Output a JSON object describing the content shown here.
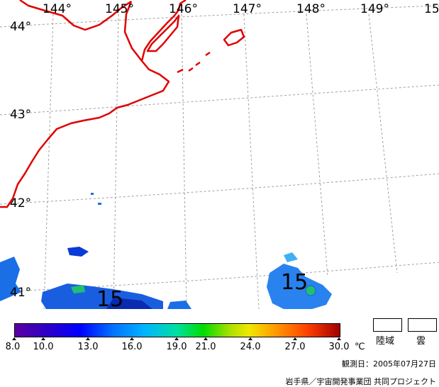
{
  "map": {
    "longitude_labels": [
      "144°",
      "145°",
      "146°",
      "147°",
      "148°",
      "149°",
      "15"
    ],
    "latitude_labels": [
      "44°",
      "43°",
      "42°",
      "41°"
    ],
    "contour_labels": [
      "15",
      "15"
    ],
    "coastline_color": "#e00000"
  },
  "legend": {
    "ticks": [
      "8.0",
      "10.0",
      "13.0",
      "16.0",
      "19.0",
      "21.0",
      "24.0",
      "27.0",
      "30.0"
    ],
    "unit": "℃",
    "land_label": "陸域",
    "cloud_label": "雲"
  },
  "observation_date": "観測日：2005年07月27日",
  "credit": "岩手県／宇宙開発事業団 共同プロジェクト"
}
